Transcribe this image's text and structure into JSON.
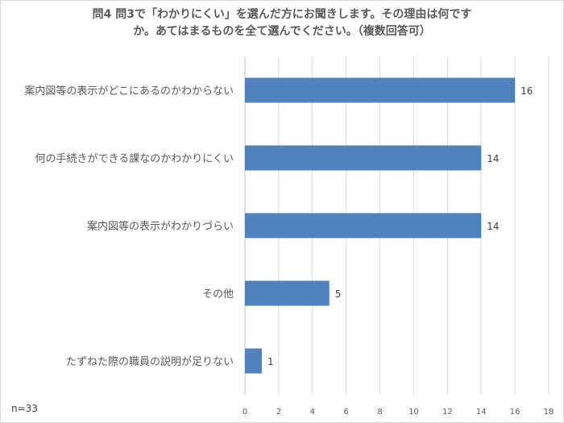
{
  "chart_data": {
    "type": "bar",
    "orientation": "horizontal",
    "title_lines": [
      "問4 問3で「わかりにくい」を選んだ方にお聞きします。その理由は何です",
      "か。あてはまるものを全て選んでください。（複数回答可）"
    ],
    "categories": [
      "案内図等の表示がどこにあるのかわからない",
      "何の手続きができる課なのかわかりにくい",
      "案内図等の表示がわかりづらい",
      "その他",
      "たずねた際の職員の説明が足りない"
    ],
    "values": [
      16,
      14,
      14,
      5,
      1
    ],
    "xlim": [
      0,
      18
    ],
    "xticks": [
      "0",
      "2",
      "4",
      "6",
      "8",
      "10",
      "12",
      "14",
      "16",
      "18"
    ],
    "grid": true,
    "data_labels": true,
    "bar_color": "#4f81bd",
    "note": "n=33"
  }
}
